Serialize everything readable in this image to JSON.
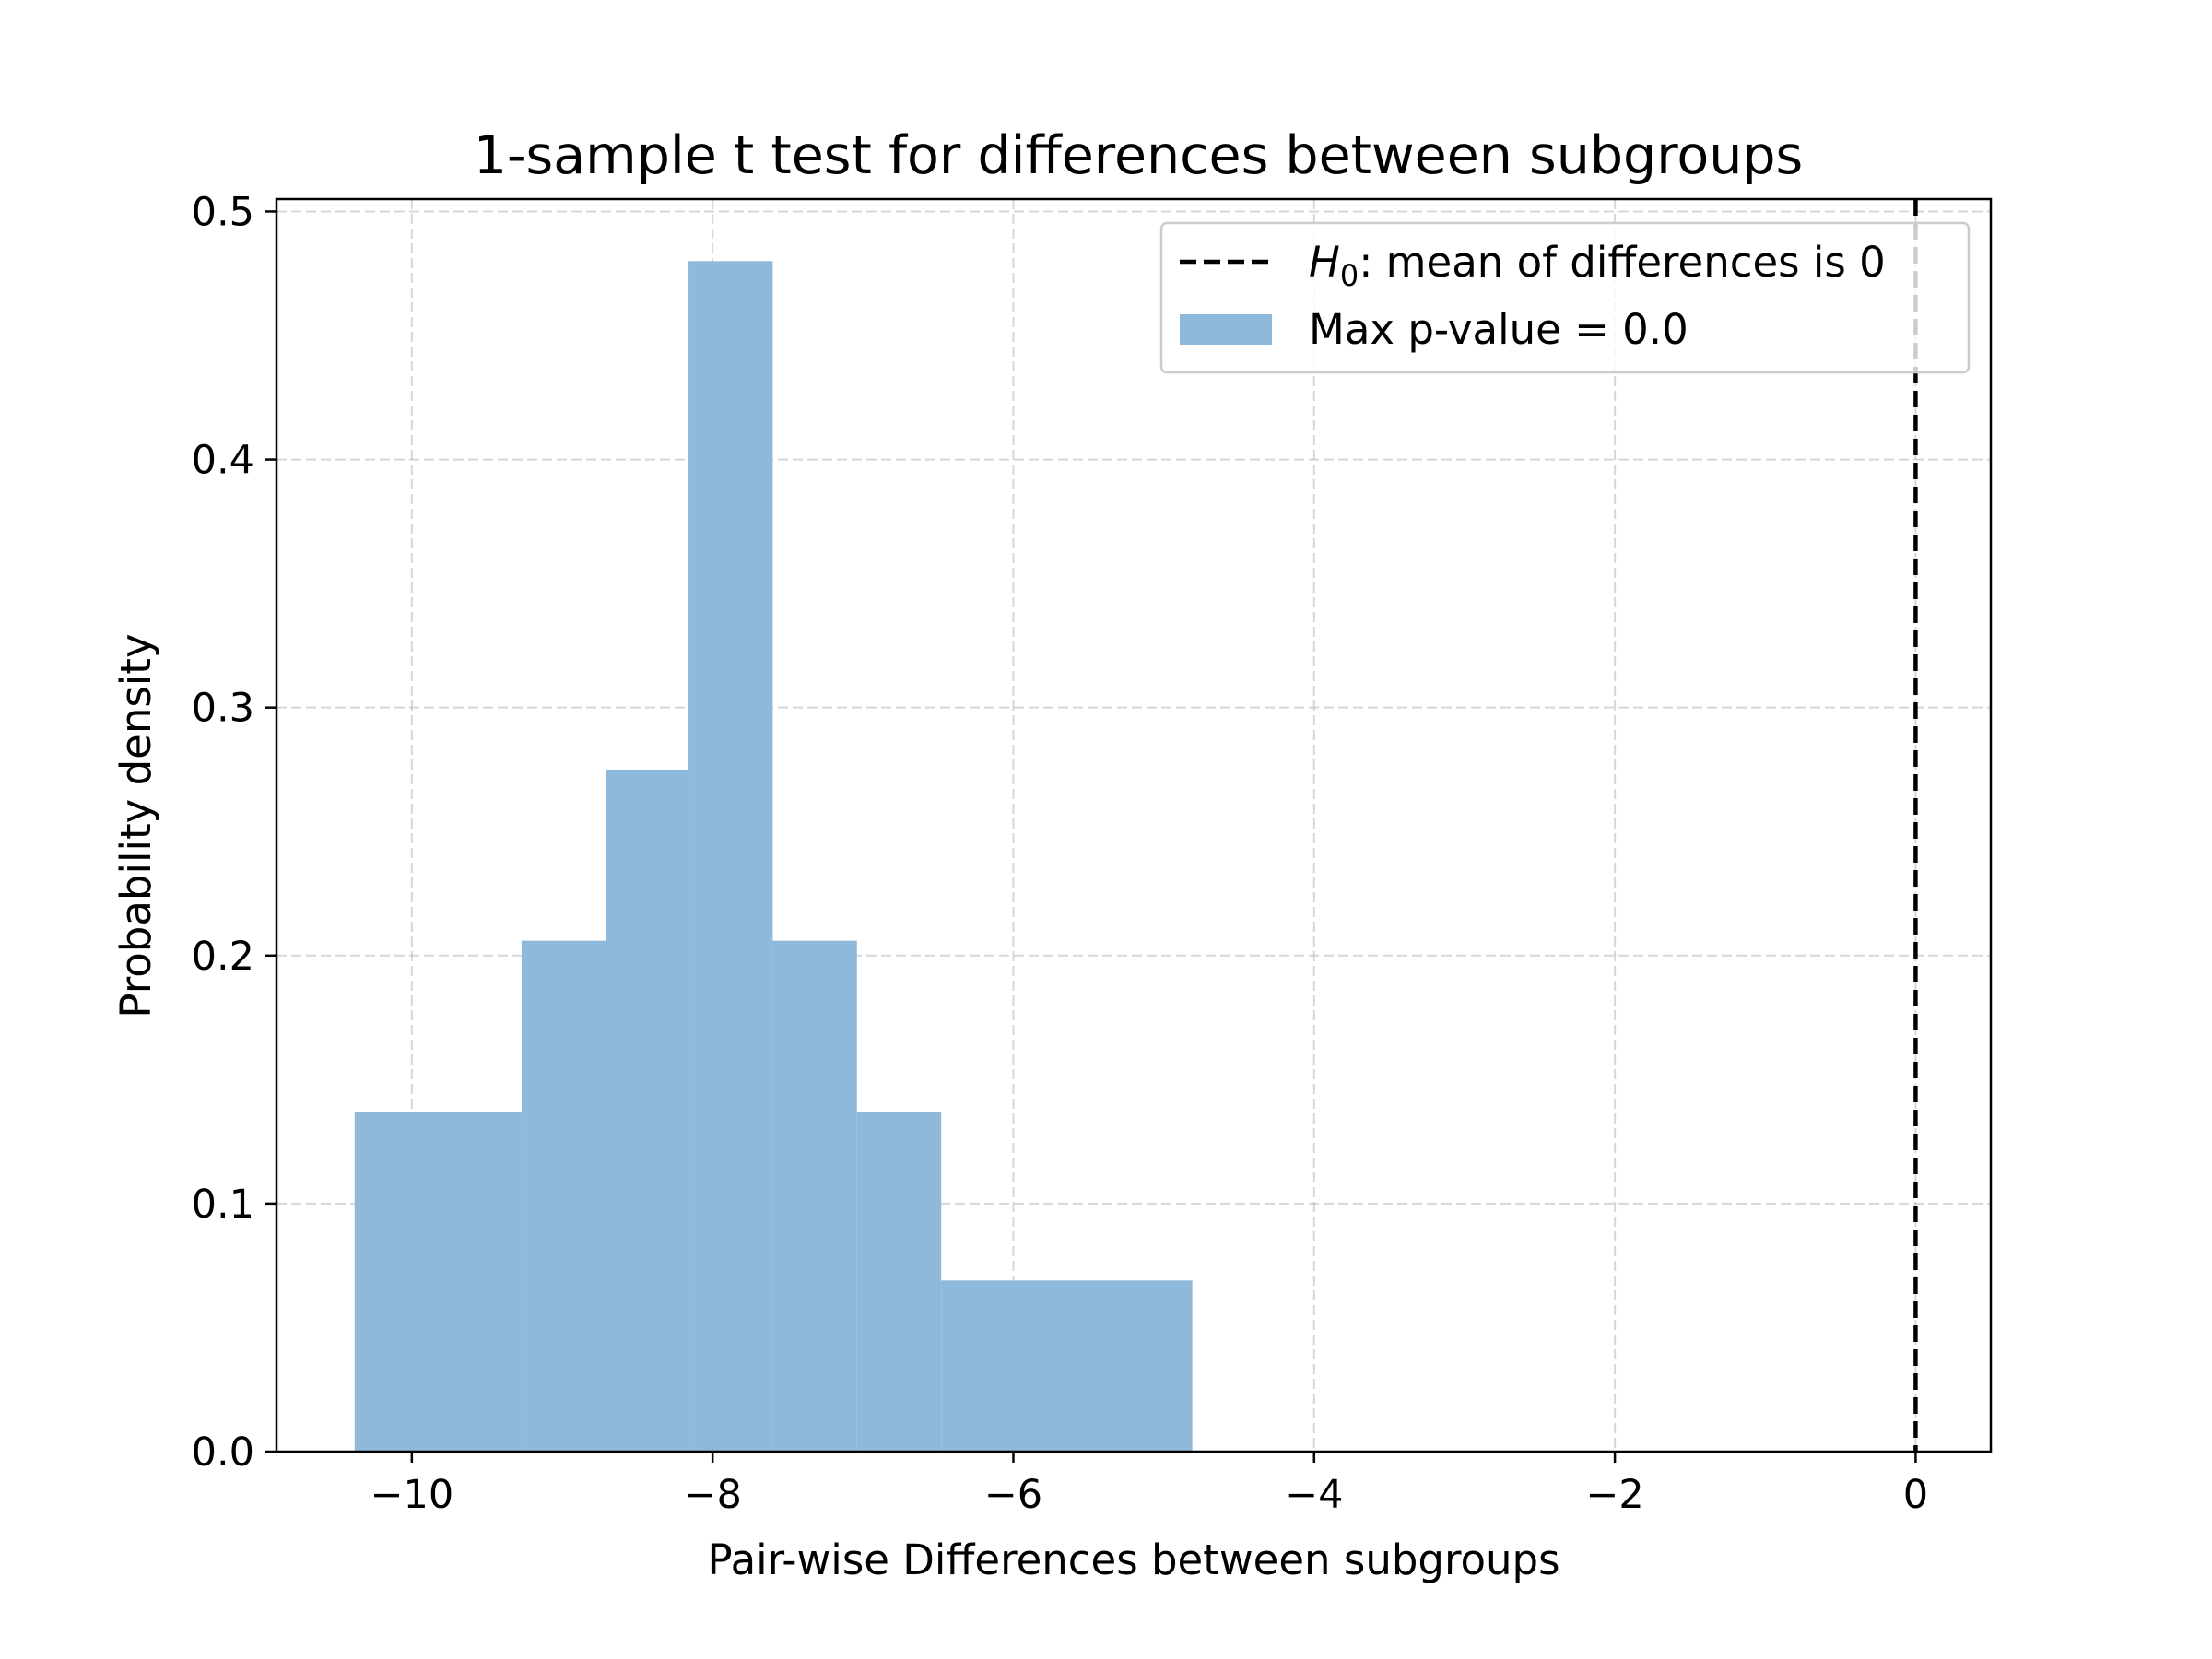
{
  "chart_data": {
    "type": "bar",
    "title": "1-sample t test for differences between subgroups",
    "xlabel": "Pair-wise Differences between subgroups",
    "ylabel": "Probability density",
    "xlim": [
      -10.9,
      0.5
    ],
    "ylim": [
      0,
      0.505
    ],
    "xticks": [
      -10,
      -8,
      -6,
      -4,
      -2,
      0
    ],
    "xtick_labels": [
      "−10",
      "−8",
      "−6",
      "−4",
      "−2",
      "0"
    ],
    "yticks": [
      0.0,
      0.1,
      0.2,
      0.3,
      0.4,
      0.5
    ],
    "ytick_labels": [
      "0.0",
      "0.1",
      "0.2",
      "0.3",
      "0.4",
      "0.5"
    ],
    "grid": true,
    "bins": [
      {
        "x0": -10.38,
        "x1": -9.27,
        "value": 0.137
      },
      {
        "x0": -9.27,
        "x1": -8.71,
        "value": 0.206
      },
      {
        "x0": -8.71,
        "x1": -8.16,
        "value": 0.275
      },
      {
        "x0": -8.16,
        "x1": -7.6,
        "value": 0.48
      },
      {
        "x0": -7.6,
        "x1": -7.04,
        "value": 0.206
      },
      {
        "x0": -7.04,
        "x1": -6.48,
        "value": 0.137
      },
      {
        "x0": -6.48,
        "x1": -4.81,
        "value": 0.069
      }
    ],
    "bar_color": "#8fb9da",
    "reference_line": {
      "x": 0,
      "style": "dashed",
      "color": "#000000"
    },
    "legend": {
      "placement": "upper right",
      "entries": [
        {
          "h0_symbol": "H",
          "h0_subscript": "0",
          "text": ": mean of differences is 0",
          "style": "dashed-line"
        },
        {
          "text": "Max p-value = 0.0",
          "style": "patch"
        }
      ]
    }
  }
}
